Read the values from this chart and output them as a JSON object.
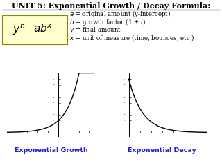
{
  "title": "UNIT 5: Exponential Growth / Decay Formula:",
  "formula_box_color": "#FFFFCC",
  "definitions": [
    "$a$ = original amount (y-intercept)",
    "$b$ = growth factor (1 ± $r$)",
    "$y$ = final amount",
    "$x$ = unit of measure (time, bounces, etc.)"
  ],
  "growth_label": "Exponential Growth",
  "decay_label": "Exponential Decay",
  "curve_color": "#000000",
  "label_color": "#2222cc",
  "bg_color": "#ffffff",
  "title_fontsize": 8.0,
  "def_fontsize": 6.2,
  "formula_fontsize": 11,
  "label_fontsize": 6.8
}
